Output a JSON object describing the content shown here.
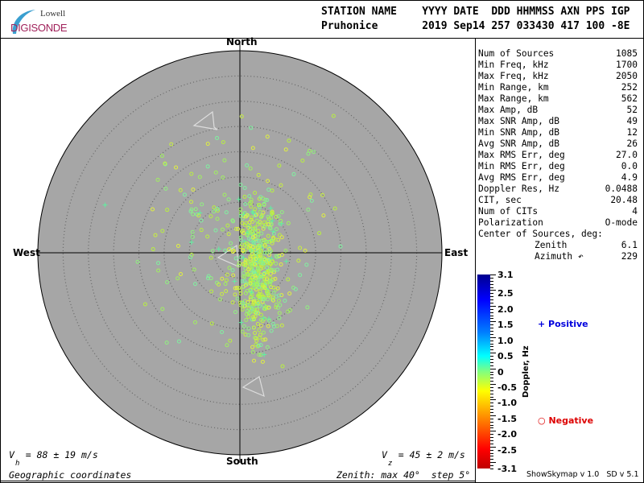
{
  "logo": {
    "line1": "Lowell",
    "line2": "DIGISONDE"
  },
  "header": {
    "labels": "STATION NAME    YYYY DATE  DDD HHMMSS AXN PPS IGP",
    "values": "Pruhonice       2019 Sep14 257 033430 417 100 -8E"
  },
  "directions": {
    "north": "North",
    "south": "South",
    "east": "East",
    "west": "West"
  },
  "stats": [
    {
      "label": "Num of Sources",
      "value": "1085"
    },
    {
      "label": "Min Freq, kHz",
      "value": "1700"
    },
    {
      "label": "Max Freq, kHz",
      "value": "2050"
    },
    {
      "label": "Min Range, km",
      "value": "252"
    },
    {
      "label": "Max Range, km",
      "value": "562"
    },
    {
      "label": "Max Amp, dB",
      "value": "52"
    },
    {
      "label": "Max SNR Amp, dB",
      "value": "49"
    },
    {
      "label": "Min SNR Amp, dB",
      "value": "12"
    },
    {
      "label": "Avg SNR Amp, dB",
      "value": "26"
    },
    {
      "label": "Max RMS Err, deg",
      "value": "27.0"
    },
    {
      "label": "Min RMS Err, deg",
      "value": "0.0"
    },
    {
      "label": "Avg RMS Err, deg",
      "value": "4.9"
    },
    {
      "label": "Doppler Res, Hz",
      "value": "0.0488"
    },
    {
      "label": "CIT, sec",
      "value": "20.48"
    },
    {
      "label": "Num of CITs",
      "value": "4"
    },
    {
      "label": "Polarization",
      "value": "O-mode"
    },
    {
      "label": "Center of Sources, deg:",
      "value": ""
    },
    {
      "label": "Zenith",
      "value": "6.1"
    },
    {
      "label": "Azimuth ↶",
      "value": "229"
    }
  ],
  "colorbar": {
    "title": "Doppler, Hz",
    "labels": [
      "3.1",
      "2.5",
      "2.0",
      "1.5",
      "1.0",
      "0.5",
      "0",
      "-0.5",
      "-1.0",
      "-1.5",
      "-2.0",
      "-2.5",
      "-3.1"
    ],
    "range": [
      -3.1,
      3.1
    ]
  },
  "legend": {
    "positive": "Positive",
    "negative": "Negative",
    "positive_color": "#0000dd",
    "negative_color": "#dd0000"
  },
  "footer": {
    "vh": "V  = 88 ± 19 m/s",
    "vh_sub": "h",
    "vz": "V  = 45 ± 2 m/s",
    "vz_sub": "z",
    "coords": "Geographic coordinates",
    "zenith": "Zenith: max 40°  step 5°",
    "version": "ShowSkymap v 1.0   SD v 5.1"
  },
  "skymap": {
    "zenith_max_deg": 40,
    "step_deg": 5,
    "background": "#a6a6a6"
  }
}
